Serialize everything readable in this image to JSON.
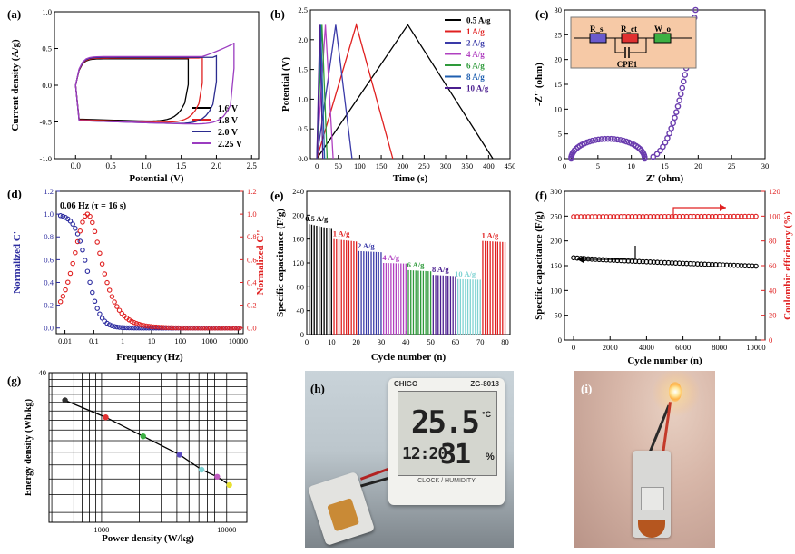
{
  "figure": {
    "panel_letters": [
      "(a)",
      "(b)",
      "(c)",
      "(d)",
      "(e)",
      "(f)",
      "(g)",
      "(h)",
      "(i)"
    ]
  },
  "chart_data": [
    {
      "id": "a",
      "type": "line",
      "title": "",
      "xlabel": "Potential (V)",
      "ylabel": "Current density (A/g)",
      "xlim": [
        -0.3,
        2.6
      ],
      "ylim": [
        -1.0,
        1.0
      ],
      "xticks": [
        "0.0",
        "0.5",
        "1.0",
        "1.5",
        "2.0",
        "2.5"
      ],
      "yticks": [
        "-1.0",
        "-0.5",
        "0.0",
        "0.5",
        "1.0"
      ],
      "legend": "lower-right",
      "series": [
        {
          "name": "1.6 V",
          "color": "#000000",
          "vmax": 1.6,
          "upper_top": 0.36,
          "upper_end": 0.36,
          "lower": -0.46
        },
        {
          "name": "1.8 V",
          "color": "#e02020",
          "vmax": 1.8,
          "upper_top": 0.37,
          "upper_end": 0.38,
          "lower": -0.47
        },
        {
          "name": "2.0 V",
          "color": "#2b2b8f",
          "vmax": 2.0,
          "upper_top": 0.38,
          "upper_end": 0.4,
          "lower": -0.48
        },
        {
          "name": "2.25 V",
          "color": "#9b3cc0",
          "vmax": 2.25,
          "upper_top": 0.39,
          "upper_end": 0.58,
          "lower": -0.48
        }
      ]
    },
    {
      "id": "b",
      "type": "line",
      "xlabel": "Time (s)",
      "ylabel": "Potential (V)",
      "xlim": [
        -15,
        450
      ],
      "ylim": [
        0,
        2.5
      ],
      "xticks": [
        "0",
        "50",
        "100",
        "150",
        "200",
        "250",
        "300",
        "350",
        "400",
        "450"
      ],
      "yticks": [
        "0.0",
        "0.5",
        "1.0",
        "1.5",
        "2.0",
        "2.5"
      ],
      "legend": "top-right",
      "peak_voltage": 2.25,
      "series": [
        {
          "name": "0.5 A/g",
          "color": "#000000",
          "t_peak": 212,
          "t_end": 410
        },
        {
          "name": "1 A/g",
          "color": "#e02020",
          "t_peak": 92,
          "t_end": 177
        },
        {
          "name": "2 A/g",
          "color": "#3a3aa8",
          "t_peak": 44,
          "t_end": 82
        },
        {
          "name": "4 A/g",
          "color": "#b040c0",
          "t_peak": 20,
          "t_end": 38
        },
        {
          "name": "6 A/g",
          "color": "#2e9a3a",
          "t_peak": 12,
          "t_end": 24
        },
        {
          "name": "8 A/g",
          "color": "#1f5fb0",
          "t_peak": 9,
          "t_end": 18
        },
        {
          "name": "10 A/g",
          "color": "#4b1f8f",
          "t_peak": 7,
          "t_end": 14
        }
      ]
    },
    {
      "id": "c",
      "type": "scatter",
      "xlabel": "Z' (ohm)",
      "ylabel": "-Z'' (ohm)",
      "xlim": [
        0,
        30
      ],
      "ylim": [
        0,
        30
      ],
      "xticks": [
        "0",
        "5",
        "10",
        "15",
        "20",
        "25",
        "30"
      ],
      "yticks": [
        "0",
        "5",
        "10",
        "15",
        "20",
        "25",
        "30"
      ],
      "color": "#6a3cae",
      "semicircle": {
        "x_start": 1.0,
        "x_end": 12.0,
        "height": 4.0
      },
      "warburg": {
        "x_from": 12.0,
        "x_to": 19.6,
        "y_to": 30
      },
      "inset_circuit": [
        "R_s",
        "R_ct",
        "W_o",
        "CPE1"
      ],
      "inset_colors": {
        "bg": "#f6c9a6",
        "rs": "#6a5acd",
        "rct": "#e03030",
        "wo": "#3cb043"
      }
    },
    {
      "id": "d",
      "type": "scatter",
      "xlabel": "Frequency (Hz)",
      "ylabel": "Normalized C'",
      "ylabel_right": "Normalized C''",
      "xscale": "log",
      "xlim": [
        0.005,
        15000
      ],
      "ylim": [
        -0.05,
        1.2
      ],
      "xticks": [
        "0.01",
        "0.1",
        "1",
        "10",
        "100",
        "1000",
        "10000"
      ],
      "yticks": [
        "0.0",
        "0.2",
        "0.4",
        "0.6",
        "0.8",
        "1.0",
        "1.2"
      ],
      "annotation": "0.06 Hz (τ = 16 s)",
      "peak_frequency": 0.06,
      "series": [
        {
          "name": "Normalized C'",
          "color": "#2b2b9f"
        },
        {
          "name": "Normalized C''",
          "color": "#e02020"
        }
      ]
    },
    {
      "id": "e",
      "type": "bar",
      "xlabel": "Cycle number (n)",
      "ylabel": "Specific capacitance (F/g)",
      "xlim": [
        0,
        82
      ],
      "ylim": [
        0,
        240
      ],
      "xticks": [
        "0",
        "10",
        "20",
        "30",
        "40",
        "50",
        "60",
        "70",
        "80"
      ],
      "yticks": [
        "0",
        "40",
        "80",
        "120",
        "160",
        "200",
        "240"
      ],
      "groups": [
        {
          "label": "0.5 A/g",
          "color": "#000000",
          "from": 1,
          "to": 10,
          "start": 185,
          "end": 177
        },
        {
          "label": "1 A/g",
          "color": "#e02020",
          "from": 11,
          "to": 20,
          "start": 160,
          "end": 156
        },
        {
          "label": "2 A/g",
          "color": "#3a3aa8",
          "from": 21,
          "to": 30,
          "start": 140,
          "end": 138
        },
        {
          "label": "4 A/g",
          "color": "#b040c0",
          "from": 31,
          "to": 40,
          "start": 120,
          "end": 119
        },
        {
          "label": "6 A/g",
          "color": "#2e9a3a",
          "from": 41,
          "to": 50,
          "start": 108,
          "end": 106
        },
        {
          "label": "8 A/g",
          "color": "#4b1f8f",
          "from": 51,
          "to": 60,
          "start": 100,
          "end": 98
        },
        {
          "label": "10 A/g",
          "color": "#7fd3d3",
          "from": 61,
          "to": 70,
          "start": 93,
          "end": 92
        },
        {
          "label": "1 A/g",
          "color": "#e02020",
          "from": 71,
          "to": 80,
          "start": 157,
          "end": 155
        }
      ]
    },
    {
      "id": "f",
      "type": "scatter",
      "xlabel": "Cycle number (n)",
      "ylabel": "Specific capacitance (F/g)",
      "ylabel_right": "Coulombic efficiency (%)",
      "xlim": [
        -500,
        10500
      ],
      "ylim": [
        0,
        300
      ],
      "ylim_right": [
        0,
        120
      ],
      "xticks": [
        "0",
        "2000",
        "4000",
        "6000",
        "8000",
        "10000"
      ],
      "yticks": [
        "0",
        "50",
        "100",
        "150",
        "200",
        "250",
        "300"
      ],
      "yticks_right": [
        "0",
        "20",
        "40",
        "60",
        "80",
        "100",
        "120"
      ],
      "series": [
        {
          "name": "Specific capacitance",
          "color": "#000000",
          "start": 166,
          "end": 149
        },
        {
          "name": "Coulombic efficiency",
          "color": "#e02020",
          "start": 99.5,
          "end": 99.8
        }
      ]
    },
    {
      "id": "g",
      "type": "scatter",
      "xlabel": "Power density (W/kg)",
      "ylabel": "Energy density (Wh/kg)",
      "xscale": "log",
      "yscale": "log",
      "xlim": [
        380,
        14500
      ],
      "ylim": [
        13,
        40
      ],
      "xticks": [
        "1000",
        "10000"
      ],
      "yticks": [
        "40"
      ],
      "points": [
        {
          "x": 510,
          "y": 32.5,
          "color": "#303030"
        },
        {
          "x": 1080,
          "y": 28.6,
          "color": "#e03030"
        },
        {
          "x": 2150,
          "y": 24.8,
          "color": "#3cb043"
        },
        {
          "x": 4200,
          "y": 21.6,
          "color": "#5a4abf"
        },
        {
          "x": 6300,
          "y": 19.3,
          "color": "#7fd3d3"
        },
        {
          "x": 8400,
          "y": 18.3,
          "color": "#c05cc0"
        },
        {
          "x": 10500,
          "y": 17.2,
          "color": "#e8e030"
        }
      ]
    }
  ],
  "photo_h": {
    "brand": "CHIGO",
    "model": "ZG-8018",
    "temperature": "25.5",
    "temp_unit": "°C",
    "time": "12:20",
    "humidity": "31",
    "humidity_unit": "%",
    "label": "CLOCK / HUMIDITY"
  }
}
